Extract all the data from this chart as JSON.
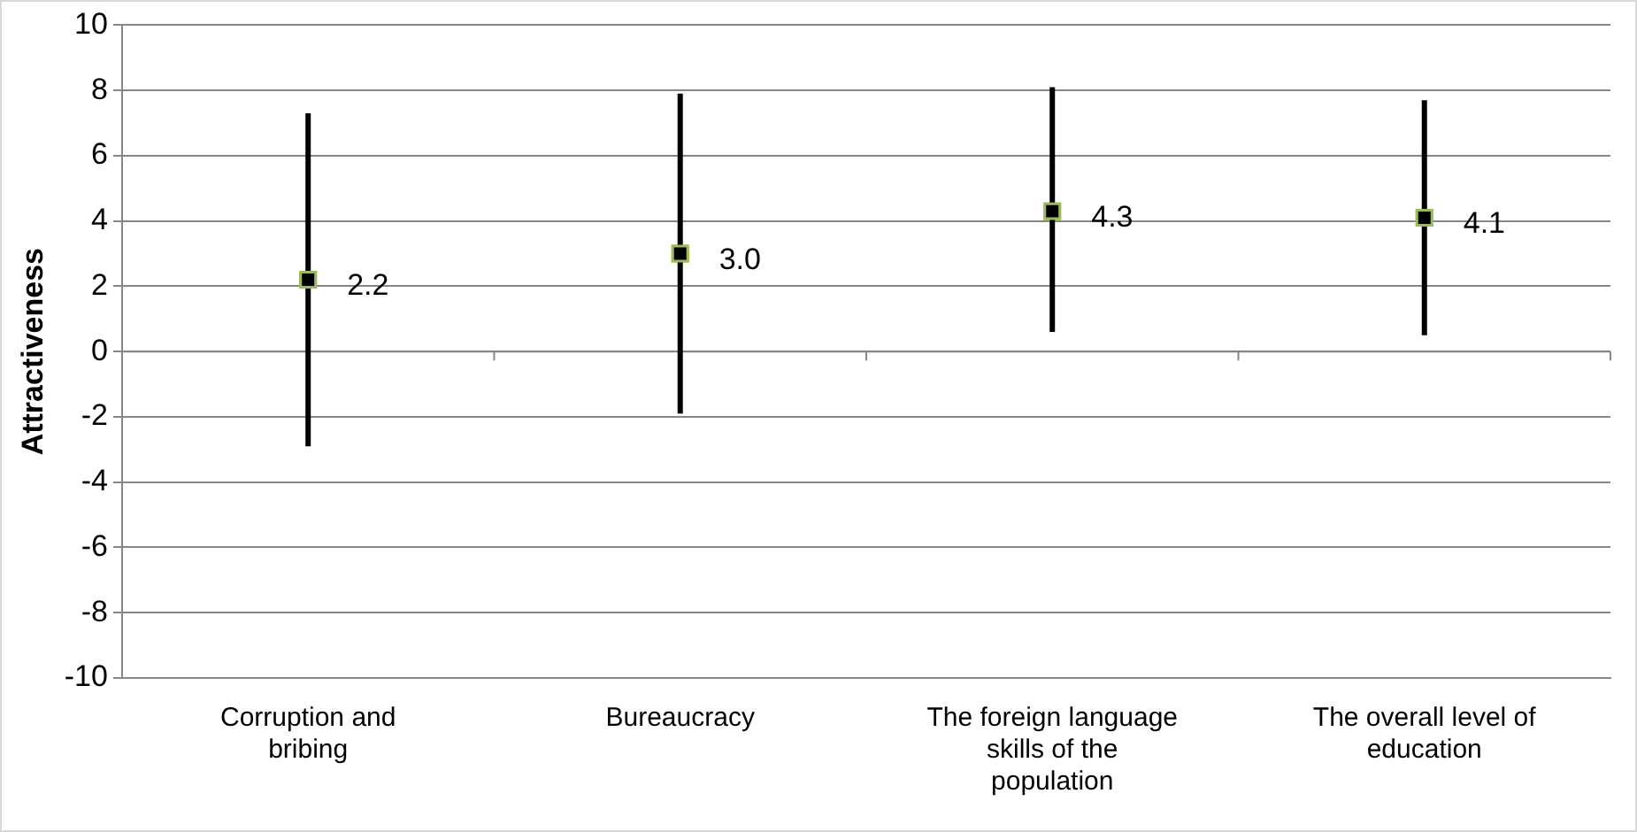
{
  "chart_data": {
    "type": "scatter",
    "ylabel": "Attractiveness",
    "categories": [
      "Corruption and bribing",
      "Bureaucracy",
      "The foreign language skills of the population",
      "The overall level of education"
    ],
    "series": [
      {
        "color": "#000000",
        "values": [
          2.2,
          3.0,
          4.3,
          4.1
        ],
        "errors": [
          [
            -2.9,
            7.3
          ],
          [
            -1.9,
            7.9
          ],
          [
            0.6,
            8.1
          ],
          [
            0.5,
            7.7
          ]
        ],
        "value_labels": [
          "2.2",
          "3.0",
          "4.3",
          "4.1"
        ]
      }
    ],
    "ylim": [
      -10,
      10
    ],
    "yticks": [
      -10,
      -8,
      -6,
      -4,
      -2,
      0,
      2,
      4,
      6,
      8,
      10
    ],
    "grid": "y",
    "legend": false,
    "marker": "square"
  }
}
